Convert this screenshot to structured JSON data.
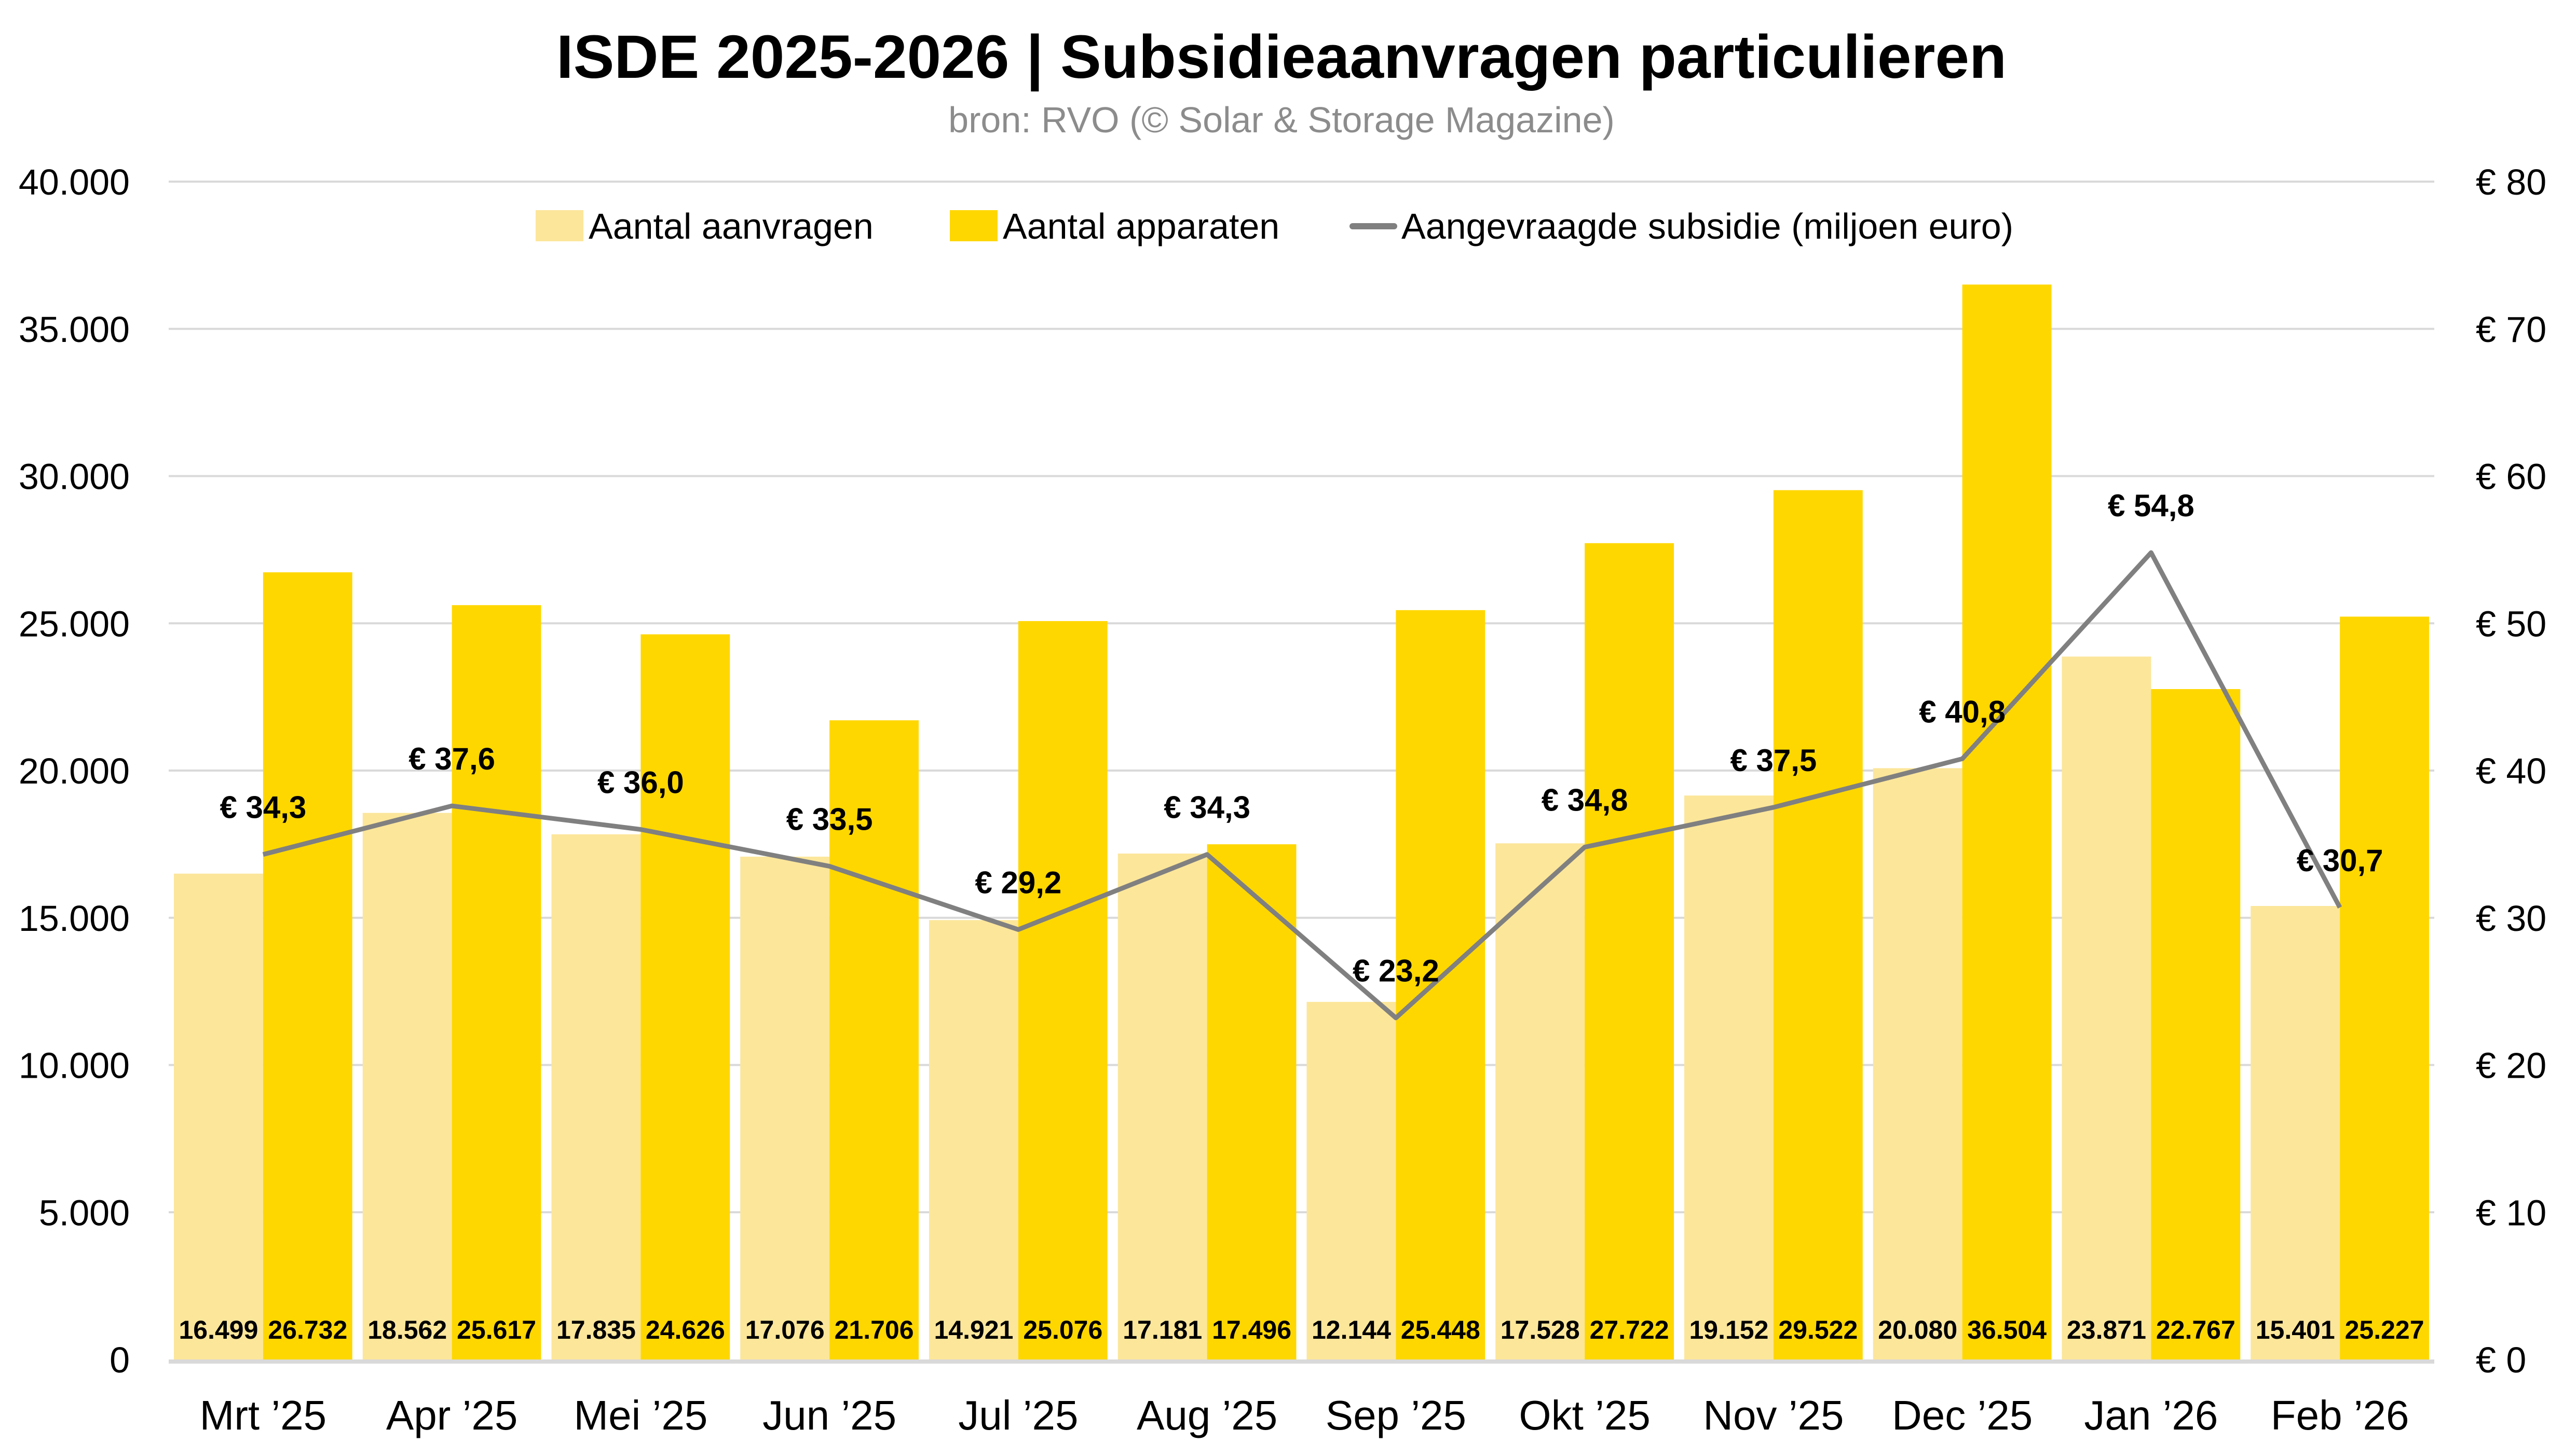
{
  "chart_data": {
    "type": "bar",
    "title": "ISDE 2025-2026 | Subsidieaanvragen particulieren",
    "subtitle": "bron: RVO (© Solar & Storage Magazine)",
    "categories": [
      "Mrt ’25",
      "Apr ’25",
      "Mei ’25",
      "Jun ’25",
      "Jul ’25",
      "Aug ’25",
      "Sep ’25",
      "Okt ’25",
      "Nov ’25",
      "Dec ’25",
      "Jan ’26",
      "Feb ’26"
    ],
    "series": [
      {
        "name": "Aantal aanvragen",
        "type": "bar",
        "axis": "left",
        "color": "#FCE69A",
        "values": [
          16499,
          18562,
          17835,
          17076,
          14921,
          17181,
          12144,
          17528,
          19152,
          20080,
          23871,
          15401
        ],
        "labels": [
          "16.499",
          "18.562",
          "17.835",
          "17.076",
          "14.921",
          "17.181",
          "12.144",
          "17.528",
          "19.152",
          "20.080",
          "23.871",
          "15.401"
        ]
      },
      {
        "name": "Aantal apparaten",
        "type": "bar",
        "axis": "left",
        "color": "#FFD700",
        "values": [
          26732,
          25617,
          24626,
          21706,
          25076,
          17496,
          25448,
          27722,
          29522,
          36504,
          22767,
          25227
        ],
        "labels": [
          "26.732",
          "25.617",
          "24.626",
          "21.706",
          "25.076",
          "17.496",
          "25.448",
          "27.722",
          "29.522",
          "36.504",
          "22.767",
          "25.227"
        ]
      },
      {
        "name": "Aangevraagde subsidie (miljoen euro)",
        "type": "line",
        "axis": "right",
        "color": "#808080",
        "values": [
          34.3,
          37.6,
          36.0,
          33.5,
          29.2,
          34.3,
          23.2,
          34.8,
          37.5,
          40.8,
          54.8,
          30.7
        ],
        "labels": [
          "€ 34,3",
          "€ 37,6",
          "€ 36,0",
          "€ 33,5",
          "€ 29,2",
          "€ 34,3",
          "€ 23,2",
          "€ 34,8",
          "€ 37,5",
          "€ 40,8",
          "€ 54,8",
          "€ 30,7"
        ]
      }
    ],
    "y_left": {
      "range": [
        0,
        40000
      ],
      "ticks": [
        0,
        5000,
        10000,
        15000,
        20000,
        25000,
        30000,
        35000,
        40000
      ],
      "tick_labels": [
        "0",
        "5.000",
        "10.000",
        "15.000",
        "20.000",
        "25.000",
        "30.000",
        "35.000",
        "40.000"
      ]
    },
    "y_right": {
      "range": [
        0,
        80
      ],
      "ticks": [
        0,
        10,
        20,
        30,
        40,
        50,
        60,
        70,
        80
      ],
      "tick_labels": [
        "€ 0",
        "€ 10",
        "€ 20",
        "€ 30",
        "€ 40",
        "€ 50",
        "€ 60",
        "€ 70",
        "€ 80"
      ]
    },
    "xlabel": "",
    "ylabel": "",
    "grid": true,
    "legend_position": "top-center",
    "gridline_color": "#D9D9D9"
  }
}
